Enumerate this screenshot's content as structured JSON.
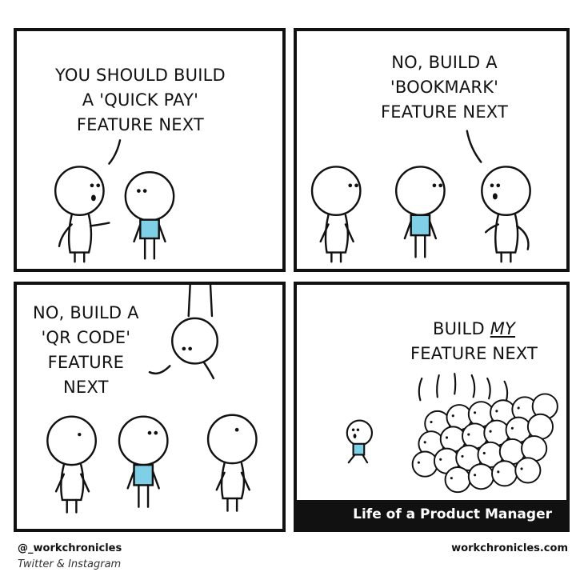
{
  "panels": [
    {
      "speech_lines": [
        "YOU SHOULD BUILD",
        "A 'QUICK PAY'",
        "FEATURE NEXT"
      ]
    },
    {
      "speech_lines": [
        "NO, BUILD A",
        "'BOOKMARK'",
        "FEATURE NEXT"
      ]
    },
    {
      "speech_lines": [
        "NO, BUILD A",
        "'QR CODE'",
        "FEATURE",
        "NEXT"
      ]
    },
    {
      "speech_line1": "BUILD ",
      "speech_line1_emph": "MY",
      "speech_line2": "FEATURE NEXT",
      "caption": "Life of a Product Manager"
    }
  ],
  "footer": {
    "handle": "@_workchronicles",
    "platforms": "Twitter & Instagram",
    "website": "workchronicles.com"
  },
  "colors": {
    "ink": "#111111",
    "shirt": "#7fd0e6",
    "background": "#ffffff"
  },
  "icons": [
    "stick-figure-icon",
    "stick-figure-crowd-icon"
  ]
}
